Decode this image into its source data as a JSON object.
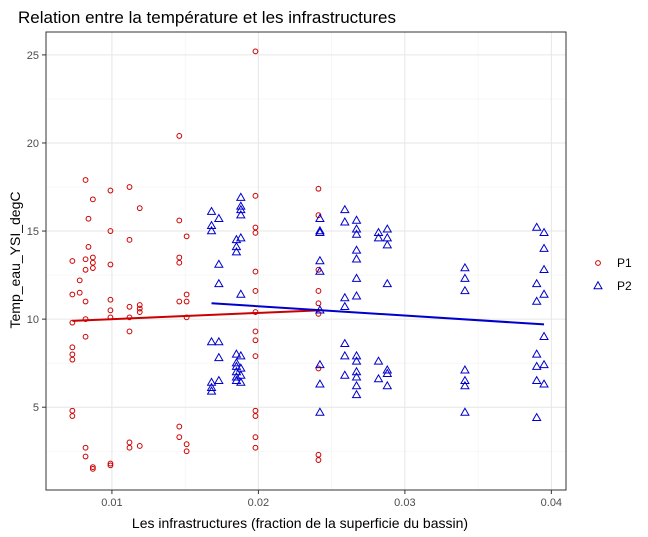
{
  "chart_data": {
    "type": "scatter",
    "title": "Relation entre la température et les infrastructures",
    "xlabel": "Les infrastructures (fraction de la superficie du bassin)",
    "ylabel": "Temp_eau_YSI_degC",
    "xlim": [
      0.0055,
      0.041
    ],
    "ylim": [
      0.3,
      26.3
    ],
    "x_ticks": [
      0.01,
      0.02,
      0.03,
      0.04
    ],
    "x_tick_labels": [
      "0.01",
      "0.02",
      "0.03",
      "0.04"
    ],
    "y_ticks": [
      5,
      10,
      15,
      20,
      25
    ],
    "y_tick_labels": [
      "5",
      "10",
      "15",
      "20",
      "25"
    ],
    "grid": true,
    "legend_position": "right",
    "series": [
      {
        "name": "P1",
        "color": "#cc0000",
        "marker": "circle",
        "points": [
          [
            0.0073,
            13.3
          ],
          [
            0.0073,
            11.4
          ],
          [
            0.0073,
            9.8
          ],
          [
            0.0073,
            8.4
          ],
          [
            0.0073,
            8.0
          ],
          [
            0.0073,
            7.7
          ],
          [
            0.0073,
            4.8
          ],
          [
            0.0073,
            4.5
          ],
          [
            0.0078,
            12.2
          ],
          [
            0.0078,
            11.5
          ],
          [
            0.0082,
            17.9
          ],
          [
            0.0082,
            13.4
          ],
          [
            0.0082,
            12.8
          ],
          [
            0.0082,
            11.0
          ],
          [
            0.0082,
            10.0
          ],
          [
            0.0082,
            9.0
          ],
          [
            0.0082,
            2.7
          ],
          [
            0.0082,
            2.2
          ],
          [
            0.0084,
            15.7
          ],
          [
            0.0084,
            14.1
          ],
          [
            0.0087,
            16.8
          ],
          [
            0.0087,
            13.5
          ],
          [
            0.0087,
            13.2
          ],
          [
            0.0087,
            12.9
          ],
          [
            0.0087,
            1.6
          ],
          [
            0.0087,
            1.5
          ],
          [
            0.0099,
            17.3
          ],
          [
            0.0099,
            15.0
          ],
          [
            0.0099,
            13.1
          ],
          [
            0.0099,
            11.1
          ],
          [
            0.0099,
            10.5
          ],
          [
            0.0099,
            10.1
          ],
          [
            0.0099,
            1.8
          ],
          [
            0.0099,
            1.7
          ],
          [
            0.0112,
            17.5
          ],
          [
            0.0112,
            14.5
          ],
          [
            0.0112,
            10.7
          ],
          [
            0.0112,
            10.1
          ],
          [
            0.0112,
            9.3
          ],
          [
            0.0112,
            3.0
          ],
          [
            0.0112,
            2.7
          ],
          [
            0.0119,
            16.3
          ],
          [
            0.0119,
            10.8
          ],
          [
            0.0119,
            10.6
          ],
          [
            0.0119,
            10.4
          ],
          [
            0.0119,
            2.8
          ],
          [
            0.0146,
            20.4
          ],
          [
            0.0146,
            15.6
          ],
          [
            0.0146,
            13.5
          ],
          [
            0.0146,
            13.2
          ],
          [
            0.0146,
            11.0
          ],
          [
            0.0146,
            3.9
          ],
          [
            0.0146,
            3.3
          ],
          [
            0.0151,
            14.7
          ],
          [
            0.0151,
            11.4
          ],
          [
            0.0151,
            11.0
          ],
          [
            0.0151,
            10.1
          ],
          [
            0.0151,
            2.9
          ],
          [
            0.0151,
            2.5
          ],
          [
            0.0198,
            25.2
          ],
          [
            0.0198,
            17.0
          ],
          [
            0.0198,
            15.2
          ],
          [
            0.0198,
            14.9
          ],
          [
            0.0198,
            12.7
          ],
          [
            0.0198,
            11.6
          ],
          [
            0.0198,
            10.4
          ],
          [
            0.0198,
            9.3
          ],
          [
            0.0198,
            8.8
          ],
          [
            0.0198,
            7.9
          ],
          [
            0.0198,
            4.8
          ],
          [
            0.0198,
            4.5
          ],
          [
            0.0198,
            3.3
          ],
          [
            0.0198,
            2.7
          ],
          [
            0.0241,
            17.4
          ],
          [
            0.0241,
            15.9
          ],
          [
            0.0241,
            12.8
          ],
          [
            0.0241,
            11.6
          ],
          [
            0.0241,
            10.9
          ],
          [
            0.0241,
            10.3
          ],
          [
            0.0241,
            7.2
          ],
          [
            0.0241,
            2.3
          ],
          [
            0.0241,
            2.0
          ]
        ]
      },
      {
        "name": "P2",
        "color": "#0000cc",
        "marker": "triangle",
        "points": [
          [
            0.0168,
            16.1
          ],
          [
            0.0168,
            15.3
          ],
          [
            0.0168,
            15.0
          ],
          [
            0.0168,
            8.7
          ],
          [
            0.0168,
            6.4
          ],
          [
            0.0168,
            6.1
          ],
          [
            0.0168,
            5.9
          ],
          [
            0.0173,
            15.7
          ],
          [
            0.0173,
            13.1
          ],
          [
            0.0173,
            12.0
          ],
          [
            0.0173,
            8.7
          ],
          [
            0.0173,
            7.8
          ],
          [
            0.0173,
            6.5
          ],
          [
            0.0185,
            14.5
          ],
          [
            0.0185,
            14.1
          ],
          [
            0.0185,
            13.8
          ],
          [
            0.0185,
            8.0
          ],
          [
            0.0185,
            7.5
          ],
          [
            0.0185,
            7.3
          ],
          [
            0.0185,
            7.0
          ],
          [
            0.0185,
            6.7
          ],
          [
            0.0185,
            6.5
          ],
          [
            0.0188,
            16.9
          ],
          [
            0.0188,
            16.4
          ],
          [
            0.0188,
            16.2
          ],
          [
            0.0188,
            15.9
          ],
          [
            0.0188,
            14.6
          ],
          [
            0.0188,
            11.4
          ],
          [
            0.0188,
            7.9
          ],
          [
            0.0188,
            7.2
          ],
          [
            0.0188,
            6.8
          ],
          [
            0.0188,
            6.4
          ],
          [
            0.0242,
            15.7
          ],
          [
            0.0242,
            15.0
          ],
          [
            0.0242,
            14.9
          ],
          [
            0.0242,
            13.3
          ],
          [
            0.0242,
            12.7
          ],
          [
            0.0242,
            10.5
          ],
          [
            0.0242,
            7.4
          ],
          [
            0.0242,
            6.3
          ],
          [
            0.0242,
            4.7
          ],
          [
            0.0259,
            16.2
          ],
          [
            0.0259,
            15.5
          ],
          [
            0.0259,
            11.2
          ],
          [
            0.0259,
            10.7
          ],
          [
            0.0259,
            8.6
          ],
          [
            0.0259,
            7.9
          ],
          [
            0.0259,
            6.8
          ],
          [
            0.0267,
            15.6
          ],
          [
            0.0267,
            15.1
          ],
          [
            0.0267,
            14.8
          ],
          [
            0.0267,
            13.9
          ],
          [
            0.0267,
            13.4
          ],
          [
            0.0267,
            12.3
          ],
          [
            0.0267,
            11.3
          ],
          [
            0.0267,
            7.9
          ],
          [
            0.0267,
            7.6
          ],
          [
            0.0267,
            7.0
          ],
          [
            0.0267,
            6.7
          ],
          [
            0.0267,
            6.2
          ],
          [
            0.0267,
            5.7
          ],
          [
            0.0282,
            14.9
          ],
          [
            0.0282,
            14.6
          ],
          [
            0.0282,
            7.6
          ],
          [
            0.0282,
            6.6
          ],
          [
            0.0288,
            15.1
          ],
          [
            0.0288,
            14.6
          ],
          [
            0.0288,
            14.2
          ],
          [
            0.0288,
            12.0
          ],
          [
            0.0288,
            7.1
          ],
          [
            0.0288,
            6.9
          ],
          [
            0.0288,
            6.2
          ],
          [
            0.0341,
            12.9
          ],
          [
            0.0341,
            12.3
          ],
          [
            0.0341,
            11.6
          ],
          [
            0.0341,
            7.1
          ],
          [
            0.0341,
            6.5
          ],
          [
            0.0341,
            6.2
          ],
          [
            0.0341,
            4.7
          ],
          [
            0.039,
            15.2
          ],
          [
            0.039,
            12.0
          ],
          [
            0.039,
            11.0
          ],
          [
            0.039,
            8.0
          ],
          [
            0.039,
            7.3
          ],
          [
            0.039,
            6.5
          ],
          [
            0.039,
            4.4
          ],
          [
            0.0395,
            14.9
          ],
          [
            0.0395,
            14.0
          ],
          [
            0.0395,
            12.8
          ],
          [
            0.0395,
            11.4
          ],
          [
            0.0395,
            9.0
          ],
          [
            0.0395,
            7.4
          ],
          [
            0.0395,
            6.3
          ]
        ]
      }
    ],
    "trend_lines": [
      {
        "series": "P1",
        "color": "#cc0000",
        "from": [
          0.0073,
          9.9
        ],
        "to": [
          0.0241,
          10.5
        ]
      },
      {
        "series": "P2",
        "color": "#0000cc",
        "from": [
          0.0168,
          10.9
        ],
        "to": [
          0.0395,
          9.7
        ]
      }
    ]
  }
}
